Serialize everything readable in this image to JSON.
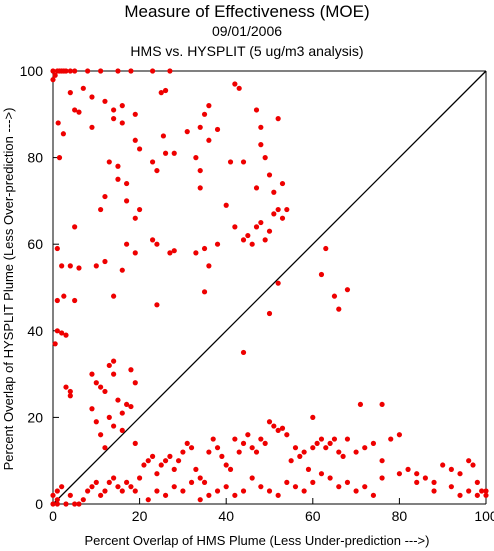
{
  "chart_data": {
    "type": "scatter",
    "title": "Measure of Effectiveness (MOE)",
    "subtitle": "09/01/2006",
    "subtitle2": "HMS vs. HYSPLIT  (5 ug/m3 analysis)",
    "xlabel": "Percent Overlap of HMS Plume (Less Under-prediction --->)",
    "ylabel": "Percent Overlap of HYSPLIT Plume (Less Over-prediction --->)",
    "xlim": [
      0,
      100
    ],
    "ylim": [
      0,
      100
    ],
    "xticks": [
      "0",
      "20",
      "40",
      "60",
      "80",
      "100"
    ],
    "yticks": [
      "0",
      "20",
      "40",
      "60",
      "80",
      "100"
    ],
    "grid": false,
    "reference_line": "y = x",
    "marker_color": "#ee0000",
    "line_color": "#000000",
    "series": [
      {
        "points": [
          [
            0,
            100
          ],
          [
            0.5,
            99
          ],
          [
            1,
            100
          ],
          [
            1.5,
            100
          ],
          [
            2,
            100
          ],
          [
            2.5,
            100
          ],
          [
            3,
            100
          ],
          [
            4,
            100
          ],
          [
            5,
            100
          ],
          [
            8,
            100
          ],
          [
            11,
            100
          ],
          [
            15,
            100
          ],
          [
            18,
            100
          ],
          [
            23,
            100
          ],
          [
            27,
            100
          ],
          [
            0,
            98
          ],
          [
            4,
            95
          ],
          [
            7,
            96
          ],
          [
            9,
            94
          ],
          [
            12,
            93
          ],
          [
            16,
            92
          ],
          [
            14,
            91
          ],
          [
            19,
            90
          ],
          [
            25,
            95
          ],
          [
            26,
            95.5
          ],
          [
            36,
            92
          ],
          [
            35,
            90
          ],
          [
            42,
            97
          ],
          [
            43,
            96
          ],
          [
            47,
            91
          ],
          [
            48,
            87
          ],
          [
            52,
            89
          ],
          [
            1.2,
            88
          ],
          [
            2.4,
            85.5
          ],
          [
            9,
            87
          ],
          [
            14,
            89
          ],
          [
            16,
            88
          ],
          [
            19,
            84
          ],
          [
            20,
            82
          ],
          [
            25.5,
            85
          ],
          [
            28,
            81
          ],
          [
            31,
            86
          ],
          [
            34,
            87
          ],
          [
            36,
            84
          ],
          [
            38,
            86.5
          ],
          [
            44,
            79
          ],
          [
            48,
            83
          ],
          [
            49,
            80
          ],
          [
            1.5,
            80
          ],
          [
            5,
            91
          ],
          [
            6,
            90.5
          ],
          [
            13,
            79
          ],
          [
            15,
            78
          ],
          [
            17,
            74
          ],
          [
            23,
            79
          ],
          [
            24,
            77
          ],
          [
            26,
            81
          ],
          [
            33,
            80
          ],
          [
            34,
            77
          ],
          [
            41,
            79
          ],
          [
            47,
            73
          ],
          [
            50,
            76
          ],
          [
            51,
            72
          ],
          [
            53,
            74
          ],
          [
            54,
            68
          ],
          [
            12,
            71
          ],
          [
            11,
            68
          ],
          [
            15,
            75
          ],
          [
            17,
            70
          ],
          [
            19,
            66
          ],
          [
            20,
            68
          ],
          [
            23,
            61
          ],
          [
            24,
            60
          ],
          [
            27,
            58
          ],
          [
            28,
            58.5
          ],
          [
            33,
            58
          ],
          [
            34,
            73
          ],
          [
            35,
            59
          ],
          [
            36,
            55
          ],
          [
            38,
            60
          ],
          [
            40,
            69
          ],
          [
            42,
            64
          ],
          [
            44,
            61
          ],
          [
            45,
            62
          ],
          [
            46,
            60
          ],
          [
            47,
            64
          ],
          [
            48,
            65
          ],
          [
            49,
            61
          ],
          [
            50,
            63
          ],
          [
            51,
            67
          ],
          [
            52,
            68
          ],
          [
            53,
            66
          ],
          [
            5,
            64
          ],
          [
            1,
            59
          ],
          [
            2,
            55
          ],
          [
            4,
            55
          ],
          [
            6,
            54.5
          ],
          [
            2.5,
            48
          ],
          [
            5,
            47
          ],
          [
            10,
            55
          ],
          [
            12,
            56
          ],
          [
            14,
            48
          ],
          [
            16,
            54
          ],
          [
            17,
            60
          ],
          [
            19,
            58
          ],
          [
            35,
            49
          ],
          [
            63,
            59
          ],
          [
            62,
            53
          ],
          [
            65,
            48
          ],
          [
            66,
            45
          ],
          [
            68,
            49.5
          ],
          [
            52,
            51
          ],
          [
            50,
            44
          ],
          [
            24,
            46
          ],
          [
            1,
            40
          ],
          [
            2,
            39.5
          ],
          [
            3,
            39
          ],
          [
            0.5,
            37
          ],
          [
            1,
            47
          ],
          [
            3,
            27
          ],
          [
            4,
            26
          ],
          [
            4,
            25
          ],
          [
            9,
            30
          ],
          [
            10,
            28
          ],
          [
            11,
            27
          ],
          [
            12,
            26
          ],
          [
            13,
            32
          ],
          [
            14,
            33
          ],
          [
            14,
            30
          ],
          [
            15,
            24
          ],
          [
            16,
            21
          ],
          [
            17,
            23
          ],
          [
            18,
            22.5
          ],
          [
            18,
            31
          ],
          [
            19,
            28
          ],
          [
            44,
            35
          ],
          [
            9,
            22
          ],
          [
            10,
            19
          ],
          [
            11,
            16
          ],
          [
            12,
            13
          ],
          [
            13,
            20
          ],
          [
            14,
            18
          ],
          [
            16,
            17
          ],
          [
            19,
            14
          ],
          [
            71,
            23
          ],
          [
            76,
            23
          ],
          [
            60,
            20
          ],
          [
            0,
            0
          ],
          [
            0,
            2
          ],
          [
            1,
            0
          ],
          [
            1,
            1
          ],
          [
            1,
            3
          ],
          [
            2,
            4
          ],
          [
            3,
            0
          ],
          [
            4,
            2
          ],
          [
            5,
            0
          ],
          [
            6,
            0
          ],
          [
            7,
            1
          ],
          [
            8,
            3
          ],
          [
            9,
            4
          ],
          [
            10,
            5
          ],
          [
            11,
            2
          ],
          [
            12,
            3
          ],
          [
            13,
            5
          ],
          [
            14,
            6
          ],
          [
            15,
            4
          ],
          [
            16,
            3
          ],
          [
            17,
            5
          ],
          [
            18,
            4
          ],
          [
            19,
            3
          ],
          [
            20,
            6
          ],
          [
            21,
            9
          ],
          [
            22,
            10
          ],
          [
            23,
            11
          ],
          [
            24,
            7
          ],
          [
            25,
            9
          ],
          [
            26,
            10
          ],
          [
            27,
            11
          ],
          [
            28,
            8
          ],
          [
            29,
            10
          ],
          [
            30,
            12
          ],
          [
            31,
            14
          ],
          [
            32,
            13
          ],
          [
            33,
            8
          ],
          [
            34,
            6
          ],
          [
            35,
            5
          ],
          [
            36,
            12
          ],
          [
            37,
            15
          ],
          [
            38,
            13
          ],
          [
            39,
            11
          ],
          [
            40,
            9
          ],
          [
            41,
            8
          ],
          [
            42,
            15
          ],
          [
            43,
            12
          ],
          [
            44,
            14
          ],
          [
            45,
            16
          ],
          [
            46,
            13
          ],
          [
            47,
            12
          ],
          [
            48,
            15
          ],
          [
            49,
            14
          ],
          [
            50,
            19
          ],
          [
            51,
            18
          ],
          [
            52,
            17
          ],
          [
            53,
            17.5
          ],
          [
            54,
            16
          ],
          [
            55,
            10
          ],
          [
            56,
            13
          ],
          [
            57,
            11
          ],
          [
            58,
            12
          ],
          [
            59,
            8
          ],
          [
            60,
            13
          ],
          [
            61,
            14
          ],
          [
            62,
            15
          ],
          [
            63,
            13
          ],
          [
            64,
            14
          ],
          [
            65,
            15
          ],
          [
            66,
            12
          ],
          [
            67,
            11
          ],
          [
            68,
            15
          ],
          [
            70,
            12
          ],
          [
            72,
            13
          ],
          [
            74,
            14
          ],
          [
            76,
            10
          ],
          [
            78,
            15
          ],
          [
            80,
            16
          ],
          [
            82,
            8
          ],
          [
            84,
            7
          ],
          [
            86,
            6
          ],
          [
            88,
            5
          ],
          [
            90,
            9
          ],
          [
            92,
            8
          ],
          [
            94,
            7
          ],
          [
            96,
            10
          ],
          [
            97,
            9
          ],
          [
            98,
            5
          ],
          [
            99,
            3
          ],
          [
            22,
            1
          ],
          [
            24,
            3
          ],
          [
            26,
            2
          ],
          [
            28,
            4
          ],
          [
            30,
            3
          ],
          [
            32,
            5
          ],
          [
            34,
            1
          ],
          [
            36,
            2
          ],
          [
            38,
            3
          ],
          [
            40,
            4
          ],
          [
            42,
            2
          ],
          [
            44,
            3
          ],
          [
            46,
            6
          ],
          [
            48,
            4
          ],
          [
            50,
            3
          ],
          [
            52,
            2
          ],
          [
            54,
            5
          ],
          [
            56,
            4
          ],
          [
            58,
            3
          ],
          [
            60,
            5
          ],
          [
            62,
            7
          ],
          [
            64,
            6
          ],
          [
            66,
            4
          ],
          [
            68,
            5
          ],
          [
            70,
            3
          ],
          [
            72,
            4
          ],
          [
            74,
            2
          ],
          [
            76,
            6
          ],
          [
            80,
            7
          ],
          [
            84,
            5
          ],
          [
            88,
            3
          ],
          [
            92,
            4
          ],
          [
            94,
            2
          ],
          [
            96,
            3
          ],
          [
            98,
            2
          ],
          [
            100,
            3
          ],
          [
            100,
            2
          ]
        ]
      }
    ]
  }
}
